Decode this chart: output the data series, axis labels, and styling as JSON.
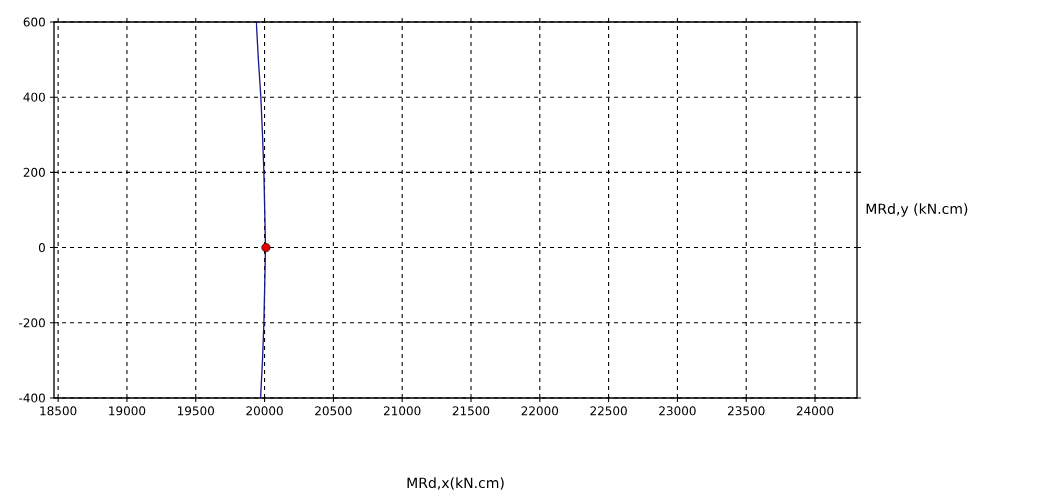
{
  "chart_data": {
    "type": "line",
    "xlabel": "MRd,x(kN.cm)",
    "ylabel": "MRd,y (kN.cm)",
    "xlim": [
      18470,
      24305
    ],
    "ylim": [
      -400,
      600
    ],
    "xticks": [
      18500,
      19000,
      19500,
      20000,
      20500,
      21000,
      21500,
      22000,
      22500,
      23000,
      23500,
      24000
    ],
    "yticks": [
      -400,
      -200,
      0,
      200,
      400,
      600
    ],
    "grid": true,
    "series": [
      {
        "color": "#1c1c8c",
        "marker": "none",
        "x": [
          19940,
          19955,
          19973,
          19985,
          19995,
          20007,
          19995,
          19985,
          19971
        ],
        "values": [
          600,
          500,
          400,
          300,
          200,
          0,
          -200,
          -300,
          -400
        ]
      },
      {
        "type": "scatter",
        "color": "#e00000",
        "marker": "circle",
        "x": [
          20010
        ],
        "values": [
          0
        ]
      }
    ]
  }
}
